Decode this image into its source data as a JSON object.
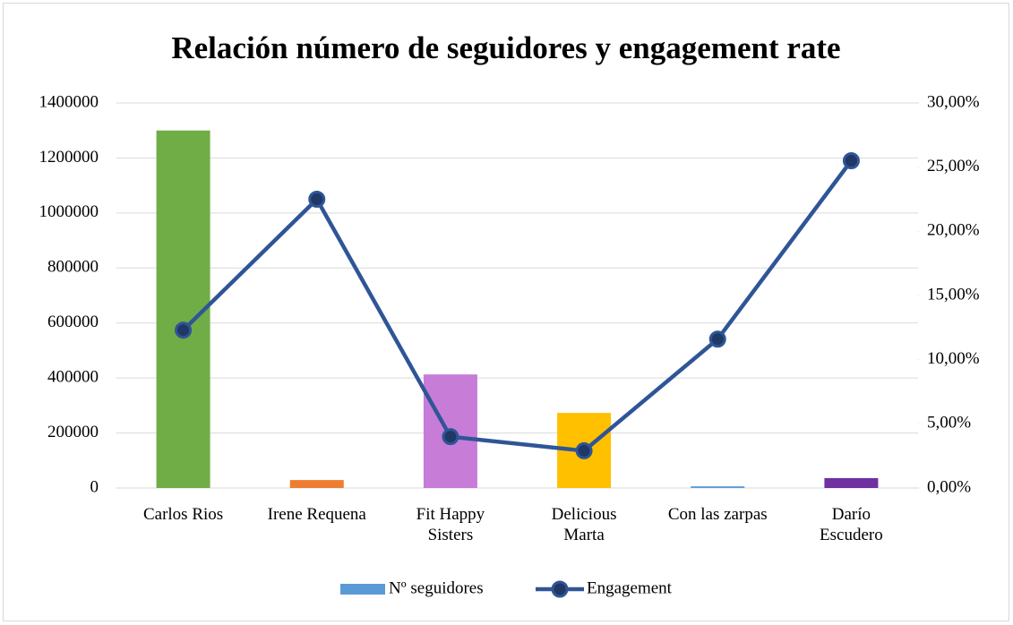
{
  "chart_data": {
    "type": "bar-line",
    "title": "Relación número de seguidores y engagement rate",
    "categories": [
      "Carlos Rios",
      "Irene Requena",
      "Fit Happy Sisters",
      "Delicious Marta",
      "Con las zarpas",
      "Darío Escudero"
    ],
    "series": [
      {
        "name": "Nº seguidores",
        "type": "bar",
        "color": "#5b9bd5",
        "colors": [
          "#70ad47",
          "#ed7d31",
          "#c77cd8",
          "#ffc000",
          "#5b9bd5",
          "#7030a0"
        ],
        "values": [
          1300000,
          29000,
          413000,
          273000,
          6000,
          36000
        ]
      },
      {
        "name": "Engagement",
        "type": "line",
        "axis": "y2",
        "color": "#2f5597",
        "values": [
          12.3,
          22.5,
          4.0,
          2.9,
          11.6,
          25.5
        ]
      }
    ],
    "ylim": [
      0,
      1400000
    ],
    "yticks": [
      0,
      200000,
      400000,
      600000,
      800000,
      1000000,
      1200000,
      1400000
    ],
    "y2lim": [
      0,
      30
    ],
    "y2ticks": [
      {
        "value": 0,
        "label": "0,00%"
      },
      {
        "value": 5,
        "label": "5,00%"
      },
      {
        "value": 10,
        "label": "10,00%"
      },
      {
        "value": 15,
        "label": "15,00%"
      },
      {
        "value": 20,
        "label": "20,00%"
      },
      {
        "value": 25,
        "label": "25,00%"
      },
      {
        "value": 30,
        "label": "30,00%"
      }
    ],
    "grid": true,
    "legend": "bottom"
  }
}
